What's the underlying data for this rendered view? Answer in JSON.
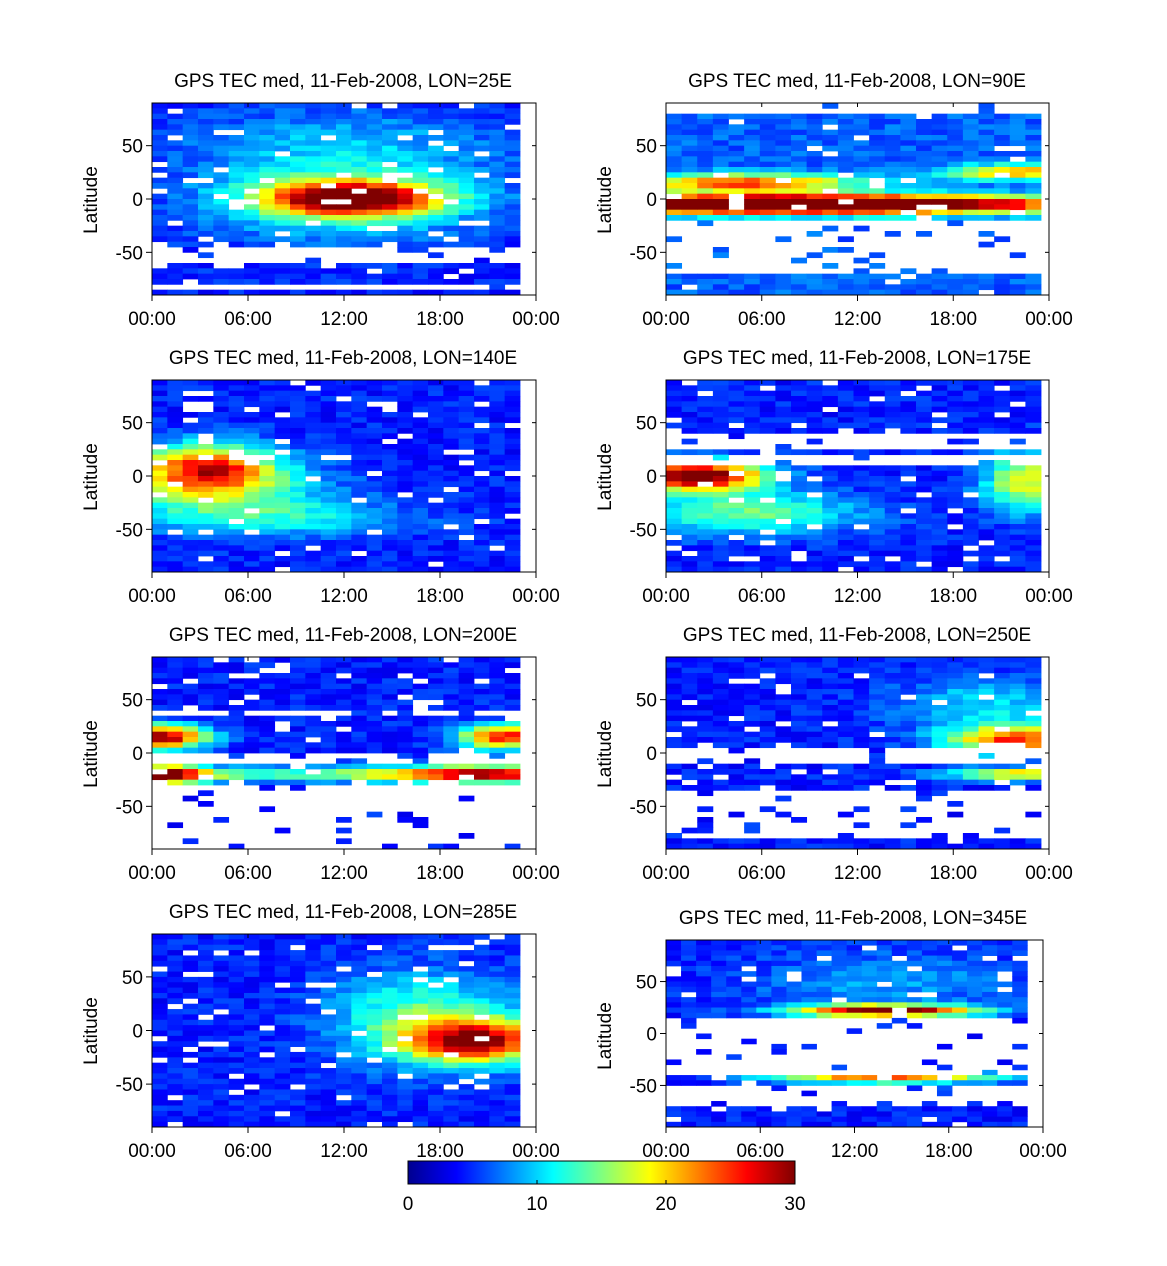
{
  "figure": {
    "colormap_anchors": [
      "#00008f",
      "#0000ff",
      "#00ffff",
      "#ffff00",
      "#ff0000",
      "#800000"
    ],
    "colormap_stops": [
      0,
      0.125,
      0.375,
      0.625,
      0.875,
      1
    ]
  },
  "colorbar": {
    "min": 0,
    "max": 30,
    "tick_labels": [
      "0",
      "10",
      "20",
      "30"
    ],
    "tick_values": [
      0,
      10,
      20,
      30
    ]
  },
  "chart_data": [
    {
      "type": "heatmap",
      "title": "GPS TEC med, 11-Feb-2008, LON=25E",
      "ylabel": "Latitude",
      "xtick_labels": [
        "00:00",
        "06:00",
        "12:00",
        "18:00",
        "00:00"
      ],
      "xtick_hours": [
        0,
        6,
        12,
        18,
        24
      ],
      "xlim_hours": [
        0,
        24
      ],
      "data_end_hour": 23,
      "ytick_labels": [
        "50",
        "0",
        "-50"
      ],
      "ytick_values": [
        50,
        0,
        -50
      ],
      "ylim": [
        -90,
        90
      ],
      "features": [
        {
          "tc": 12.5,
          "latc": 0,
          "st": 3.8,
          "sl": 11,
          "amp": 24
        },
        {
          "tc": 12,
          "latc": 5,
          "st": 6,
          "sl": 30,
          "amp": 9
        },
        {
          "tc": 12,
          "latc": 60,
          "st": 8,
          "sl": 20,
          "amp": 3
        }
      ],
      "base": 3,
      "gaps": [
        [
          -58,
          -44
        ],
        [
          -84,
          -78
        ]
      ],
      "seed": 11
    },
    {
      "type": "heatmap",
      "title": "GPS TEC med, 11-Feb-2008, LON=90E",
      "ylabel": "Latitude",
      "xtick_labels": [
        "00:00",
        "06:00",
        "12:00",
        "18:00",
        "00:00"
      ],
      "xtick_hours": [
        0,
        6,
        12,
        18,
        24
      ],
      "xlim_hours": [
        0,
        24
      ],
      "data_end_hour": 23.5,
      "ytick_labels": [
        "50",
        "0",
        "-50"
      ],
      "ytick_values": [
        50,
        0,
        -50
      ],
      "ylim": [
        -90,
        90
      ],
      "features": [
        {
          "tc": 8,
          "latc": -5,
          "st": 12,
          "sl": 6,
          "amp": 40
        },
        {
          "tc": 5,
          "latc": 15,
          "st": 5,
          "sl": 6,
          "amp": 18
        },
        {
          "tc": 22,
          "latc": 25,
          "st": 3,
          "sl": 5,
          "amp": 16
        }
      ],
      "base": 5,
      "gaps": [
        [
          -70,
          -18
        ],
        [
          38,
          42
        ],
        [
          82,
          90
        ]
      ],
      "seed": 12
    },
    {
      "type": "heatmap",
      "title": "GPS TEC med, 11-Feb-2008, LON=140E",
      "ylabel": "Latitude",
      "xtick_labels": [
        "00:00",
        "06:00",
        "12:00",
        "18:00",
        "00:00"
      ],
      "xtick_hours": [
        0,
        6,
        12,
        18,
        24
      ],
      "xlim_hours": [
        0,
        24
      ],
      "data_end_hour": 23,
      "ytick_labels": [
        "50",
        "0",
        "-50"
      ],
      "ytick_values": [
        50,
        0,
        -50
      ],
      "ylim": [
        -90,
        90
      ],
      "features": [
        {
          "tc": 3.5,
          "latc": 8,
          "st": 3,
          "sl": 16,
          "amp": 20
        },
        {
          "tc": 4,
          "latc": -15,
          "st": 5,
          "sl": 18,
          "amp": 8
        },
        {
          "tc": 8,
          "latc": -40,
          "st": 6,
          "sl": 12,
          "amp": 6
        }
      ],
      "base": 3,
      "gaps": [],
      "seed": 13
    },
    {
      "type": "heatmap",
      "title": "GPS TEC med, 11-Feb-2008, LON=175E",
      "ylabel": "Latitude",
      "xtick_labels": [
        "00:00",
        "06:00",
        "12:00",
        "18:00",
        "00:00"
      ],
      "xtick_hours": [
        0,
        6,
        12,
        18,
        24
      ],
      "xlim_hours": [
        0,
        24
      ],
      "data_end_hour": 23.5,
      "ytick_labels": [
        "50",
        "0",
        "-50"
      ],
      "ytick_values": [
        50,
        0,
        -50
      ],
      "ylim": [
        -90,
        90
      ],
      "features": [
        {
          "tc": 2,
          "latc": 0,
          "st": 3,
          "sl": 10,
          "amp": 28
        },
        {
          "tc": 5,
          "latc": -35,
          "st": 5,
          "sl": 14,
          "amp": 10
        },
        {
          "tc": 22.5,
          "latc": -5,
          "st": 1.8,
          "sl": 20,
          "amp": 14
        }
      ],
      "base": 3,
      "gaps": [
        [
          24,
          38
        ],
        [
          10,
          18
        ]
      ],
      "seed": 14
    },
    {
      "type": "heatmap",
      "title": "GPS TEC med, 11-Feb-2008, LON=200E",
      "ylabel": "Latitude",
      "xtick_labels": [
        "00:00",
        "06:00",
        "12:00",
        "18:00",
        "00:00"
      ],
      "xtick_hours": [
        0,
        6,
        12,
        18,
        24
      ],
      "xlim_hours": [
        0,
        24
      ],
      "data_end_hour": 23,
      "ytick_labels": [
        "50",
        "0",
        "-50"
      ],
      "ytick_values": [
        50,
        0,
        -50
      ],
      "ylim": [
        -90,
        90
      ],
      "features": [
        {
          "tc": 0.5,
          "latc": 15,
          "st": 2,
          "sl": 8,
          "amp": 26
        },
        {
          "tc": 0.5,
          "latc": -20,
          "st": 2,
          "sl": 6,
          "amp": 26
        },
        {
          "tc": 22,
          "latc": 15,
          "st": 2,
          "sl": 8,
          "amp": 22
        },
        {
          "tc": 21,
          "latc": -20,
          "st": 4,
          "sl": 6,
          "amp": 18
        },
        {
          "tc": 12,
          "latc": -20,
          "st": 12,
          "sl": 5,
          "amp": 10
        }
      ],
      "base": 3,
      "gaps": [
        [
          36,
          42
        ],
        [
          -12,
          0
        ],
        [
          -88,
          -30
        ]
      ],
      "seed": 15
    },
    {
      "type": "heatmap",
      "title": "GPS TEC med, 11-Feb-2008, LON=250E",
      "ylabel": "Latitude",
      "xtick_labels": [
        "00:00",
        "06:00",
        "12:00",
        "18:00",
        "00:00"
      ],
      "xtick_hours": [
        0,
        6,
        12,
        18,
        24
      ],
      "xlim_hours": [
        0,
        24
      ],
      "data_end_hour": 23.5,
      "ytick_labels": [
        "50",
        "0",
        "-50"
      ],
      "ytick_values": [
        50,
        0,
        -50
      ],
      "ylim": [
        -90,
        90
      ],
      "features": [
        {
          "tc": 22,
          "latc": 12,
          "st": 3,
          "sl": 10,
          "amp": 20
        },
        {
          "tc": 22,
          "latc": -20,
          "st": 3,
          "sl": 4,
          "amp": 16
        },
        {
          "tc": 20,
          "latc": 45,
          "st": 4,
          "sl": 18,
          "amp": 6
        }
      ],
      "base": 3,
      "gaps": [
        [
          -12,
          5
        ],
        [
          -82,
          -34
        ]
      ],
      "seed": 16
    },
    {
      "type": "heatmap",
      "title": "GPS TEC med, 11-Feb-2008, LON=285E",
      "ylabel": "Latitude",
      "xtick_labels": [
        "00:00",
        "06:00",
        "12:00",
        "18:00",
        "00:00"
      ],
      "xtick_hours": [
        0,
        6,
        12,
        18,
        24
      ],
      "xlim_hours": [
        0,
        24
      ],
      "data_end_hour": 23,
      "ytick_labels": [
        "50",
        "0",
        "-50"
      ],
      "ytick_values": [
        50,
        0,
        -50
      ],
      "ylim": [
        -90,
        90
      ],
      "features": [
        {
          "tc": 20.5,
          "latc": -10,
          "st": 3,
          "sl": 14,
          "amp": 22
        },
        {
          "tc": 17,
          "latc": 10,
          "st": 4,
          "sl": 30,
          "amp": 10
        }
      ],
      "base": 3,
      "gaps": [],
      "seed": 17
    },
    {
      "type": "heatmap",
      "title": "GPS TEC med, 11-Feb-2008, LON=345E",
      "ylabel": "Latitude",
      "xtick_labels": [
        "00:00",
        "06:00",
        "12:00",
        "18:00",
        "00:00"
      ],
      "xtick_hours": [
        0,
        6,
        12,
        18,
        24
      ],
      "xlim_hours": [
        0,
        24
      ],
      "data_end_hour": 23,
      "ytick_labels": [
        "50",
        "0",
        "-50"
      ],
      "ytick_values": [
        50,
        0,
        -50
      ],
      "ylim": [
        -90,
        90
      ],
      "features": [
        {
          "tc": 14,
          "latc": 22,
          "st": 4,
          "sl": 4,
          "amp": 28
        },
        {
          "tc": 14,
          "latc": -42,
          "st": 5,
          "sl": 4,
          "amp": 20
        },
        {
          "tc": 14,
          "latc": 50,
          "st": 6,
          "sl": 20,
          "amp": 4
        }
      ],
      "base": 3,
      "gaps": [
        [
          -38,
          15
        ],
        [
          -72,
          -50
        ]
      ],
      "seed": 18
    }
  ]
}
